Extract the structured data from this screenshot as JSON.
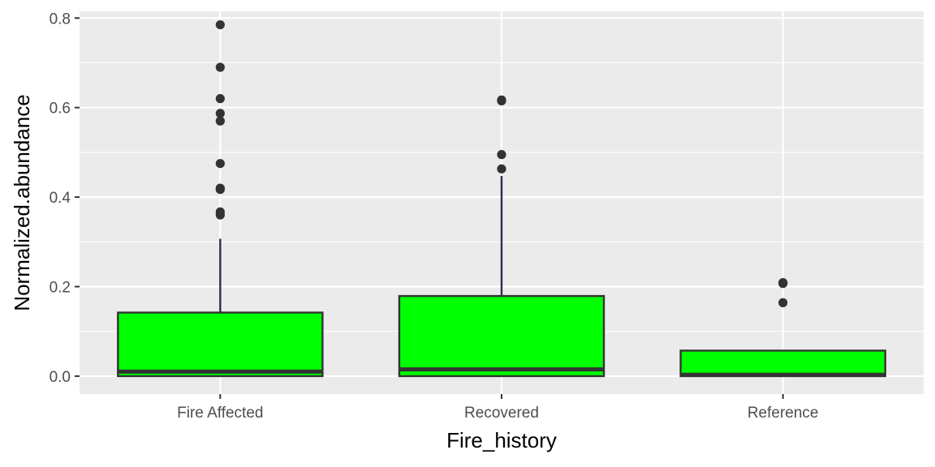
{
  "chart_data": {
    "type": "boxplot",
    "xlabel": "Fire_history",
    "ylabel": "Normalized.abundance",
    "ylim": [
      -0.04,
      0.815
    ],
    "y_ticks": [
      0.0,
      0.2,
      0.4,
      0.6,
      0.8
    ],
    "y_tick_labels": [
      "0.0",
      "0.2",
      "0.4",
      "0.6",
      "0.8"
    ],
    "categories": [
      "Fire Affected",
      "Recovered",
      "Reference"
    ],
    "grid": true,
    "colors": {
      "panel_bg": "#ebebeb",
      "grid": "#ffffff",
      "box_fill": "#00ff00",
      "box_line": "#333333",
      "whisker": "#2d2d4f",
      "outlier": "#333333"
    },
    "boxes": [
      {
        "category": "Fire Affected",
        "min": 0.0,
        "q1": 0.0,
        "median": 0.01,
        "q3": 0.142,
        "max": 0.307,
        "outliers": [
          0.785,
          0.69,
          0.62,
          0.587,
          0.57,
          0.475,
          0.42,
          0.417,
          0.367,
          0.36
        ]
      },
      {
        "category": "Recovered",
        "min": 0.0,
        "q1": 0.0,
        "median": 0.015,
        "q3": 0.179,
        "max": 0.447,
        "outliers": [
          0.617,
          0.615,
          0.495,
          0.463
        ]
      },
      {
        "category": "Reference",
        "min": 0.0,
        "q1": 0.0,
        "median": 0.003,
        "q3": 0.057,
        "max": 0.057,
        "outliers": [
          0.209,
          0.207,
          0.164
        ]
      }
    ]
  }
}
